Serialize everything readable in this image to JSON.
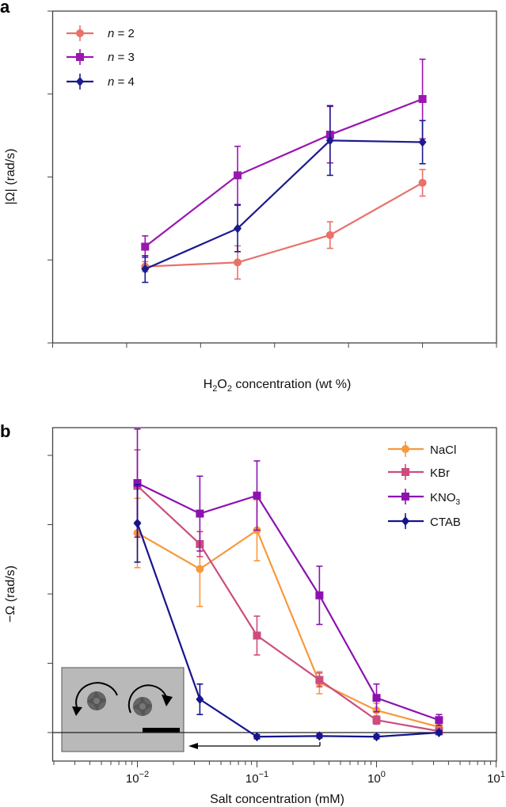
{
  "chart_data": [
    {
      "panel": "a",
      "type": "line",
      "xlabel_main": "H",
      "xlabel_sub1": "2",
      "xlabel_mid": "O",
      "xlabel_sub2": "2",
      "xlabel_rest": " concentration (wt %)",
      "ylabel": "|Ω| (rad/s)",
      "xlim": [
        0,
        12
      ],
      "ylim": [
        0,
        2
      ],
      "xticks": [
        "0",
        "2",
        "4",
        "6",
        "8",
        "10",
        "12"
      ],
      "yticks": [
        "0.0",
        "0.5",
        "1.0",
        "1.5",
        "2.0"
      ],
      "legend_position": "top-left",
      "x": [
        2.5,
        5,
        7.5,
        10
      ],
      "series": [
        {
          "name": "n = 2",
          "n_label": "n",
          "eq": " = 2",
          "color": "#e8716a",
          "marker": "circle",
          "values": [
            0.46,
            0.485,
            0.65,
            0.965
          ],
          "errors": [
            0.03,
            0.1,
            0.08,
            0.08
          ]
        },
        {
          "name": "n = 3",
          "n_label": "n",
          "eq": " = 3",
          "color": "#9a17b0",
          "marker": "square",
          "values": [
            0.58,
            1.01,
            1.255,
            1.47
          ],
          "errors": [
            0.065,
            0.175,
            0.17,
            0.24
          ]
        },
        {
          "name": "n = 4",
          "n_label": "n",
          "eq": " = 4",
          "color": "#1c1a8e",
          "marker": "diamond",
          "values": [
            0.445,
            0.69,
            1.22,
            1.21
          ],
          "errors": [
            0.08,
            0.14,
            0.21,
            0.13
          ]
        }
      ]
    },
    {
      "panel": "b",
      "type": "line",
      "xscale": "log",
      "xlabel": "Salt concentration (mM)",
      "ylabel": "−Ω (rad/s)",
      "xlim": [
        0.002,
        10
      ],
      "ylim": [
        -0.2,
        2.2
      ],
      "xticks": [
        {
          "base": "10",
          "exp": "−2"
        },
        {
          "base": "10",
          "exp": "−1"
        },
        {
          "base": "10",
          "exp": "0"
        },
        {
          "base": "10",
          "exp": "1"
        }
      ],
      "yticks": [
        "0.0",
        "0.5",
        "1.0",
        "1.5",
        "2.0"
      ],
      "legend_position": "top-right",
      "x": [
        0.01,
        0.0333,
        0.1,
        0.333,
        1,
        3.33
      ],
      "series": [
        {
          "name": "NaCl",
          "color": "#f7993d",
          "marker": "circle",
          "values": [
            1.44,
            1.18,
            1.46,
            0.36,
            0.16,
            0.04
          ],
          "errors": [
            0.25,
            0.27,
            0.22,
            0.08,
            0.05,
            0.03
          ]
        },
        {
          "name": "KBr",
          "color": "#cc4d7d",
          "marker": "square",
          "values": [
            1.78,
            1.36,
            0.7,
            0.38,
            0.09,
            0.01
          ],
          "errors": [
            0.26,
            0.09,
            0.14,
            0.05,
            0.03,
            0.02
          ]
        },
        {
          "name": "KNO3",
          "name_main": "KNO",
          "name_sub": "3",
          "color": "#8c12b0",
          "marker": "square",
          "values": [
            1.8,
            1.58,
            1.71,
            0.99,
            0.25,
            0.09
          ],
          "errors": [
            0.39,
            0.27,
            0.25,
            0.21,
            0.1,
            0.04
          ]
        },
        {
          "name": "CTAB",
          "color": "#16158c",
          "marker": "diamond",
          "values": [
            1.51,
            0.24,
            -0.03,
            -0.025,
            -0.03,
            0.0
          ],
          "errors": [
            0.28,
            0.11,
            0.015,
            0.015,
            0.015,
            0.015
          ]
        }
      ],
      "annotation": "arrow pointing left from 0.333 mM toward inset image of rotors"
    }
  ],
  "panel_labels": [
    "a",
    "b"
  ]
}
